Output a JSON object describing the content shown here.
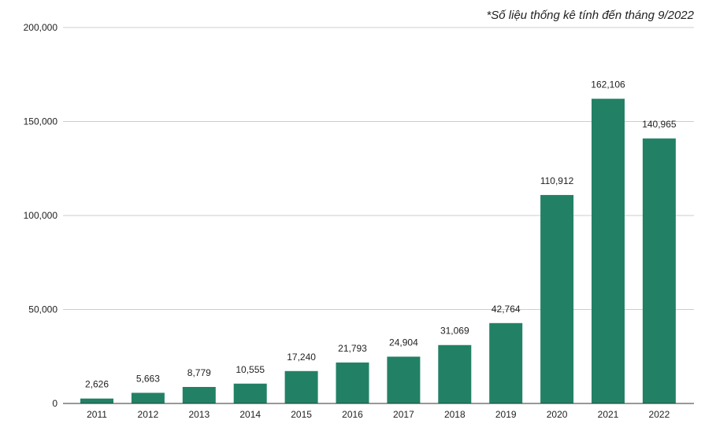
{
  "chart_data": {
    "type": "bar",
    "title": "",
    "note": "*Số liệu thống kê tính đến tháng 9/2022",
    "xlabel": "",
    "ylabel": "",
    "categories": [
      "2011",
      "2012",
      "2013",
      "2014",
      "2015",
      "2016",
      "2017",
      "2018",
      "2019",
      "2020",
      "2021",
      "2022"
    ],
    "values": [
      2626,
      5663,
      8779,
      10555,
      17240,
      21793,
      24904,
      31069,
      42764,
      110912,
      162106,
      140965
    ],
    "value_labels": [
      "2,626",
      "5,663",
      "8,779",
      "10,555",
      "17,240",
      "21,793",
      "24,904",
      "31,069",
      "42,764",
      "110,912",
      "162,106",
      "140,965"
    ],
    "ylim": [
      0,
      200000
    ],
    "y_ticks": [
      0,
      50000,
      100000,
      150000,
      200000
    ],
    "y_tick_labels": [
      "0",
      "50,000",
      "100,000",
      "150,000",
      "200,000"
    ],
    "grid": true,
    "legend": "none",
    "colors": {
      "bar": "#228165"
    }
  }
}
